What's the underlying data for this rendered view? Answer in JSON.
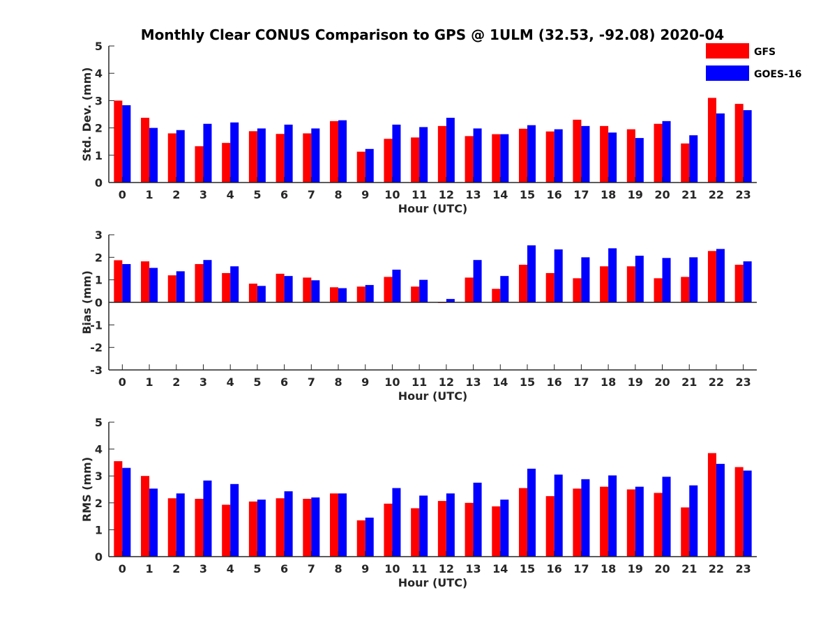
{
  "title": "Monthly Clear CONUS Comparison to GPS @ 1ULM (32.53, -92.08) 2020-04",
  "legend": {
    "placement": "top-right",
    "entries": [
      {
        "label": "GFS",
        "color": "#ff0000"
      },
      {
        "label": "GOES-16",
        "color": "#0000ff"
      }
    ]
  },
  "chart_data": [
    {
      "type": "bar",
      "xlabel": "Hour (UTC)",
      "ylabel": "Std. Dev. (mm)",
      "ylim": [
        0,
        5
      ],
      "yticks": [
        0,
        1,
        2,
        3,
        4,
        5
      ],
      "categories": [
        "0",
        "1",
        "2",
        "3",
        "4",
        "5",
        "6",
        "7",
        "8",
        "9",
        "10",
        "11",
        "12",
        "13",
        "14",
        "15",
        "16",
        "17",
        "18",
        "19",
        "20",
        "21",
        "22",
        "23"
      ],
      "series": [
        {
          "name": "GFS",
          "color": "#ff0000",
          "values": [
            3.0,
            2.37,
            1.8,
            1.33,
            1.45,
            1.88,
            1.78,
            1.8,
            2.25,
            1.13,
            1.6,
            1.65,
            2.07,
            1.7,
            1.77,
            1.97,
            1.87,
            2.3,
            2.07,
            1.95,
            2.15,
            1.43,
            3.1,
            2.88
          ]
        },
        {
          "name": "GOES-16",
          "color": "#0000ff",
          "values": [
            2.83,
            2.0,
            1.92,
            2.15,
            2.2,
            1.98,
            2.12,
            1.98,
            2.28,
            1.23,
            2.12,
            2.03,
            2.37,
            1.98,
            1.77,
            2.1,
            1.95,
            2.07,
            1.83,
            1.63,
            2.25,
            1.73,
            2.53,
            2.65
          ]
        }
      ]
    },
    {
      "type": "bar",
      "xlabel": "Hour (UTC)",
      "ylabel": "Bias (mm)",
      "ylim": [
        -3,
        3
      ],
      "yticks": [
        -3,
        -2,
        -1,
        0,
        1,
        2,
        3
      ],
      "categories": [
        "0",
        "1",
        "2",
        "3",
        "4",
        "5",
        "6",
        "7",
        "8",
        "9",
        "10",
        "11",
        "12",
        "13",
        "14",
        "15",
        "16",
        "17",
        "18",
        "19",
        "20",
        "21",
        "22",
        "23"
      ],
      "series": [
        {
          "name": "GFS",
          "color": "#ff0000",
          "values": [
            1.87,
            1.82,
            1.2,
            1.7,
            1.3,
            0.83,
            1.27,
            1.1,
            0.67,
            0.7,
            1.13,
            0.7,
            -0.03,
            1.1,
            0.6,
            1.67,
            1.3,
            1.07,
            1.6,
            1.6,
            1.07,
            1.13,
            2.28,
            1.67
          ]
        },
        {
          "name": "GOES-16",
          "color": "#0000ff",
          "values": [
            1.7,
            1.53,
            1.38,
            1.88,
            1.6,
            0.73,
            1.17,
            0.98,
            0.63,
            0.77,
            1.45,
            1.0,
            0.15,
            1.88,
            1.17,
            2.53,
            2.35,
            2.0,
            2.4,
            2.07,
            1.97,
            2.0,
            2.37,
            1.82
          ]
        }
      ]
    },
    {
      "type": "bar",
      "xlabel": "Hour (UTC)",
      "ylabel": "RMS (mm)",
      "ylim": [
        0,
        5
      ],
      "yticks": [
        0,
        1,
        2,
        3,
        4,
        5
      ],
      "categories": [
        "0",
        "1",
        "2",
        "3",
        "4",
        "5",
        "6",
        "7",
        "8",
        "9",
        "10",
        "11",
        "12",
        "13",
        "14",
        "15",
        "16",
        "17",
        "18",
        "19",
        "20",
        "21",
        "22",
        "23"
      ],
      "series": [
        {
          "name": "GFS",
          "color": "#ff0000",
          "values": [
            3.55,
            3.0,
            2.17,
            2.15,
            1.93,
            2.05,
            2.17,
            2.15,
            2.35,
            1.35,
            1.97,
            1.8,
            2.07,
            2.0,
            1.87,
            2.55,
            2.25,
            2.53,
            2.6,
            2.5,
            2.37,
            1.83,
            3.85,
            3.33
          ]
        },
        {
          "name": "GOES-16",
          "color": "#0000ff",
          "values": [
            3.3,
            2.53,
            2.35,
            2.83,
            2.7,
            2.12,
            2.43,
            2.2,
            2.35,
            1.45,
            2.55,
            2.27,
            2.35,
            2.75,
            2.12,
            3.27,
            3.05,
            2.88,
            3.02,
            2.6,
            2.97,
            2.65,
            3.45,
            3.2
          ]
        }
      ]
    }
  ]
}
